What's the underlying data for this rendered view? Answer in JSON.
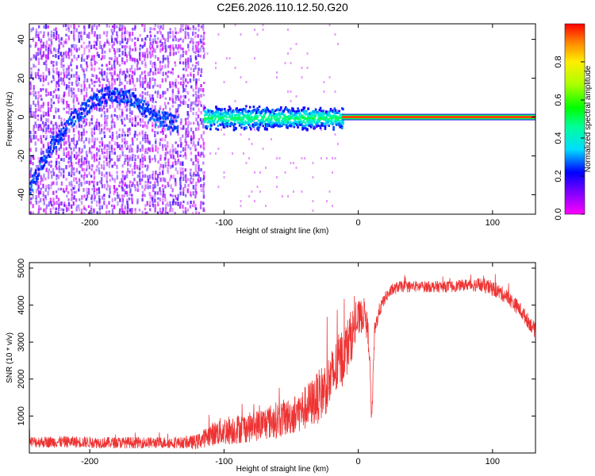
{
  "title": "C2E6.2026.110.12.50.G20",
  "chart_data": [
    {
      "type": "heatmap",
      "xlabel": "Height of straight line (km)",
      "ylabel": "Frequency (Hz)",
      "xlim": [
        -245,
        132
      ],
      "ylim": [
        -50,
        48
      ],
      "xticks": [
        -200,
        -100,
        0,
        100
      ],
      "yticks": [
        -40,
        -20,
        0,
        20,
        40
      ],
      "colorbar": {
        "label": "Normalized spectral amplitude",
        "range": [
          0,
          1
        ],
        "ticks": [
          0.0,
          0.2,
          0.4,
          0.6,
          0.8
        ]
      },
      "features": [
        {
          "name": "noise-region",
          "x_range": [
            -245,
            -115
          ],
          "frequency_range": [
            -50,
            48
          ],
          "level": 0.15
        },
        {
          "name": "trend-arc",
          "x": [
            -245,
            -230,
            -210,
            -190,
            -180,
            -170,
            -150,
            -135
          ],
          "y": [
            -35,
            -15,
            2,
            12,
            12,
            10,
            0,
            -3
          ],
          "level": 0.2
        },
        {
          "name": "main-band",
          "x_range": [
            -115,
            -12
          ],
          "frequency_center": 0,
          "frequency_halfwidth": 5,
          "level": 0.35
        },
        {
          "name": "carrier-line",
          "x_range": [
            -12,
            132
          ],
          "frequency": 0,
          "level": 0.95
        }
      ]
    },
    {
      "type": "line",
      "xlabel": "Height of straight line (km)",
      "ylabel": "SNR (10 * v/v)",
      "xlim": [
        -245,
        132
      ],
      "ylim": [
        0,
        5150
      ],
      "xticks": [
        -200,
        -100,
        0,
        100
      ],
      "yticks": [
        1000,
        2000,
        3000,
        4000,
        5000
      ],
      "series": [
        {
          "name": "SNR",
          "color": "#ee3333",
          "x": [
            -245,
            -230,
            -210,
            -190,
            -170,
            -150,
            -130,
            -120,
            -110,
            -100,
            -90,
            -80,
            -70,
            -60,
            -50,
            -40,
            -30,
            -20,
            -15,
            -10,
            -5,
            0,
            5,
            8,
            10,
            12,
            15,
            20,
            25,
            30,
            40,
            50,
            60,
            70,
            80,
            90,
            95,
            100,
            110,
            120,
            132
          ],
          "values": [
            300,
            300,
            300,
            280,
            280,
            280,
            280,
            300,
            500,
            600,
            650,
            700,
            800,
            900,
            1000,
            1200,
            1500,
            2000,
            2400,
            2700,
            3200,
            3600,
            3800,
            3000,
            800,
            3200,
            3800,
            4200,
            4400,
            4500,
            4500,
            4500,
            4500,
            4500,
            4550,
            4550,
            4500,
            4450,
            4250,
            3900,
            3300
          ],
          "noise_amplitude": [
            150,
            150,
            150,
            150,
            150,
            150,
            150,
            200,
            300,
            400,
            400,
            400,
            450,
            500,
            500,
            600,
            700,
            800,
            800,
            800,
            700,
            500,
            400,
            400,
            200,
            300,
            200,
            150,
            150,
            150,
            150,
            150,
            150,
            150,
            150,
            200,
            200,
            200,
            200,
            200,
            200
          ]
        }
      ]
    }
  ]
}
